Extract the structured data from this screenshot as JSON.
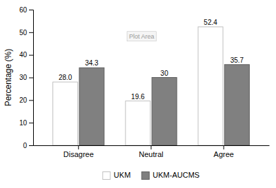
{
  "chart_data": {
    "type": "bar",
    "categories": [
      "Disagree",
      "Neutral",
      "Agree"
    ],
    "series": [
      {
        "name": "UKM",
        "color": "#ffffff",
        "values": [
          28.0,
          19.6,
          52.4
        ],
        "value_labels": [
          "28.0",
          "19.6",
          "52.4"
        ]
      },
      {
        "name": "UKM-AUCMS",
        "color": "#808080",
        "values": [
          34.3,
          30.0,
          35.7
        ]
      }
    ],
    "ylabel": "Percentage (%)",
    "ylim": [
      0,
      60
    ],
    "yticks": [
      0,
      10,
      20,
      30,
      40,
      50,
      60
    ],
    "annotations": [
      "Plot Area"
    ],
    "data_labels": true,
    "legend": "bottom",
    "grid": false
  }
}
